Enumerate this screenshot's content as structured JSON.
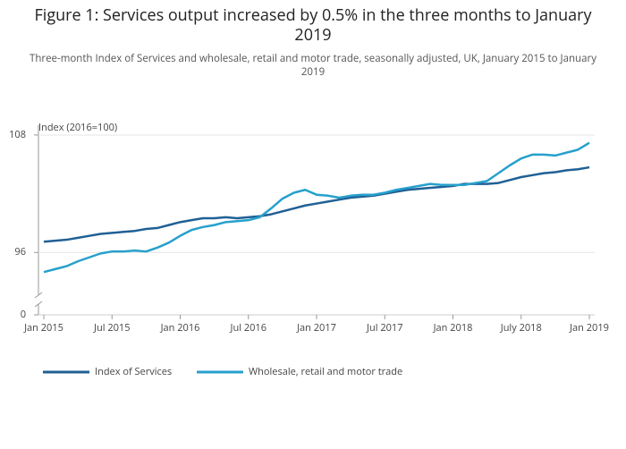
{
  "chart_data": {
    "type": "line",
    "title": "Figure 1: Services output increased by 0.5% in the three months to January 2019",
    "subtitle": "Three-month Index of Services and wholesale, retail and motor trade, seasonally adjusted, UK, January 2015 to January 2019",
    "y_label": "Index (2016=100)",
    "x": [
      "2015-01",
      "2015-02",
      "2015-03",
      "2015-04",
      "2015-05",
      "2015-06",
      "2015-07",
      "2015-08",
      "2015-09",
      "2015-10",
      "2015-11",
      "2015-12",
      "2016-01",
      "2016-02",
      "2016-03",
      "2016-04",
      "2016-05",
      "2016-06",
      "2016-07",
      "2016-08",
      "2016-09",
      "2016-10",
      "2016-11",
      "2016-12",
      "2017-01",
      "2017-02",
      "2017-03",
      "2017-04",
      "2017-05",
      "2017-06",
      "2017-07",
      "2017-08",
      "2017-09",
      "2017-10",
      "2017-11",
      "2017-12",
      "2018-01",
      "2018-02",
      "2018-03",
      "2018-04",
      "2018-05",
      "2018-06",
      "2018-07",
      "2018-08",
      "2018-09",
      "2018-10",
      "2018-11",
      "2018-12",
      "2019-01"
    ],
    "series": [
      {
        "name": "Index of Services",
        "color": "#206095",
        "values": [
          97.1,
          97.2,
          97.3,
          97.5,
          97.7,
          97.9,
          98.0,
          98.1,
          98.2,
          98.4,
          98.5,
          98.8,
          99.1,
          99.3,
          99.5,
          99.5,
          99.6,
          99.5,
          99.6,
          99.7,
          99.9,
          100.2,
          100.5,
          100.8,
          101.0,
          101.2,
          101.4,
          101.6,
          101.7,
          101.8,
          102.0,
          102.2,
          102.4,
          102.5,
          102.6,
          102.7,
          102.8,
          103.0,
          103.0,
          103.0,
          103.1,
          103.4,
          103.7,
          103.9,
          104.1,
          104.2,
          104.4,
          104.5,
          104.7
        ]
      },
      {
        "name": "Wholesale, retail and motor trade",
        "color": "#27a0cc",
        "values": [
          94.0,
          94.3,
          94.6,
          95.1,
          95.5,
          95.9,
          96.1,
          96.1,
          96.2,
          96.1,
          96.5,
          97.0,
          97.7,
          98.3,
          98.6,
          98.8,
          99.1,
          99.2,
          99.3,
          99.6,
          100.5,
          101.5,
          102.1,
          102.4,
          101.9,
          101.8,
          101.6,
          101.8,
          101.9,
          101.9,
          102.1,
          102.4,
          102.6,
          102.8,
          103.0,
          102.9,
          102.9,
          102.9,
          103.1,
          103.3,
          104.1,
          104.9,
          105.6,
          106.0,
          106.0,
          105.9,
          106.2,
          106.5,
          107.2
        ]
      }
    ],
    "ylim": [
      0,
      109
    ],
    "y_axis_break": 91,
    "yticks": [
      0,
      96,
      108
    ],
    "xticks": [
      {
        "value": "2015-01",
        "label": "Jan 2015"
      },
      {
        "value": "2015-07",
        "label": "Jul 2015"
      },
      {
        "value": "2016-01",
        "label": "Jan 2016"
      },
      {
        "value": "2016-07",
        "label": "Jul 2016"
      },
      {
        "value": "2017-01",
        "label": "Jan 2017"
      },
      {
        "value": "2017-07",
        "label": "Jul 2017"
      },
      {
        "value": "2018-01",
        "label": "Jan 2018"
      },
      {
        "value": "2018-07",
        "label": "July 2018"
      },
      {
        "value": "2019-01",
        "label": "Jan 2019"
      }
    ],
    "grid": true
  }
}
